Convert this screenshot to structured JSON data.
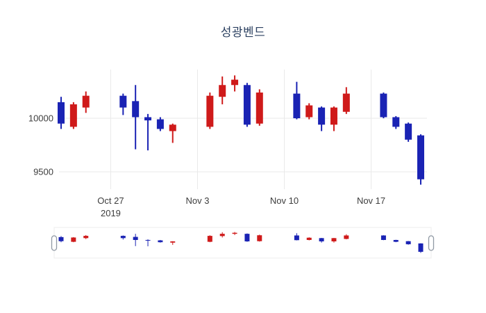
{
  "page": {
    "background": "#ffffff"
  },
  "colors": {
    "up": "#cf1a1a",
    "down": "#1a23b4",
    "grid": "#e9e9e9",
    "title_text": "#2a3f5f",
    "tick_text": "#3d3d3d",
    "slider_border": "#ededed",
    "handle_fill": "#ffffff",
    "handle_stroke": "#8f98a3"
  },
  "chart_data": {
    "type": "candlestick",
    "title": "성광벤드",
    "xlabel": "",
    "ylabel": "",
    "legend": "none",
    "grid": true,
    "rangeslider": true,
    "ylim": [
      9300,
      10450
    ],
    "y_ticks": [
      10000,
      9500
    ],
    "x_ticks": [
      {
        "label": "Oct 27",
        "year": "2019",
        "date": "2019-10-27"
      },
      {
        "label": "Nov 3",
        "year": "",
        "date": "2019-11-03"
      },
      {
        "label": "Nov 10",
        "year": "",
        "date": "2019-11-10"
      },
      {
        "label": "Nov 17",
        "year": "",
        "date": "2019-11-17"
      }
    ],
    "candles": [
      {
        "date": "2019-10-23",
        "open": 10150,
        "high": 10200,
        "low": 9900,
        "close": 9950
      },
      {
        "date": "2019-10-24",
        "open": 9920,
        "high": 10150,
        "low": 9900,
        "close": 10130
      },
      {
        "date": "2019-10-25",
        "open": 10100,
        "high": 10250,
        "low": 10050,
        "close": 10210
      },
      {
        "date": "2019-10-28",
        "open": 10210,
        "high": 10230,
        "low": 10030,
        "close": 10100
      },
      {
        "date": "2019-10-29",
        "open": 10160,
        "high": 10310,
        "low": 9710,
        "close": 10010
      },
      {
        "date": "2019-10-30",
        "open": 10010,
        "high": 10040,
        "low": 9700,
        "close": 9980
      },
      {
        "date": "2019-10-31",
        "open": 9990,
        "high": 10010,
        "low": 9880,
        "close": 9900
      },
      {
        "date": "2019-11-01",
        "open": 9880,
        "high": 9950,
        "low": 9770,
        "close": 9940
      },
      {
        "date": "2019-11-04",
        "open": 9920,
        "high": 10240,
        "low": 9900,
        "close": 10210
      },
      {
        "date": "2019-11-05",
        "open": 10200,
        "high": 10390,
        "low": 10130,
        "close": 10310
      },
      {
        "date": "2019-11-06",
        "open": 10310,
        "high": 10400,
        "low": 10250,
        "close": 10360
      },
      {
        "date": "2019-11-07",
        "open": 10310,
        "high": 10330,
        "low": 9920,
        "close": 9940
      },
      {
        "date": "2019-11-08",
        "open": 9950,
        "high": 10270,
        "low": 9930,
        "close": 10240
      },
      {
        "date": "2019-11-11",
        "open": 10230,
        "high": 10340,
        "low": 9990,
        "close": 10000
      },
      {
        "date": "2019-11-12",
        "open": 10010,
        "high": 10140,
        "low": 9990,
        "close": 10120
      },
      {
        "date": "2019-11-13",
        "open": 10100,
        "high": 10110,
        "low": 9880,
        "close": 9940
      },
      {
        "date": "2019-11-14",
        "open": 9940,
        "high": 10110,
        "low": 9880,
        "close": 10100
      },
      {
        "date": "2019-11-15",
        "open": 10060,
        "high": 10290,
        "low": 10040,
        "close": 10230
      },
      {
        "date": "2019-11-18",
        "open": 10230,
        "high": 10240,
        "low": 10000,
        "close": 10010
      },
      {
        "date": "2019-11-19",
        "open": 10010,
        "high": 10020,
        "low": 9900,
        "close": 9920
      },
      {
        "date": "2019-11-20",
        "open": 9950,
        "high": 9960,
        "low": 9780,
        "close": 9800
      },
      {
        "date": "2019-11-21",
        "open": 9840,
        "high": 9850,
        "low": 9380,
        "close": 9430
      }
    ]
  }
}
